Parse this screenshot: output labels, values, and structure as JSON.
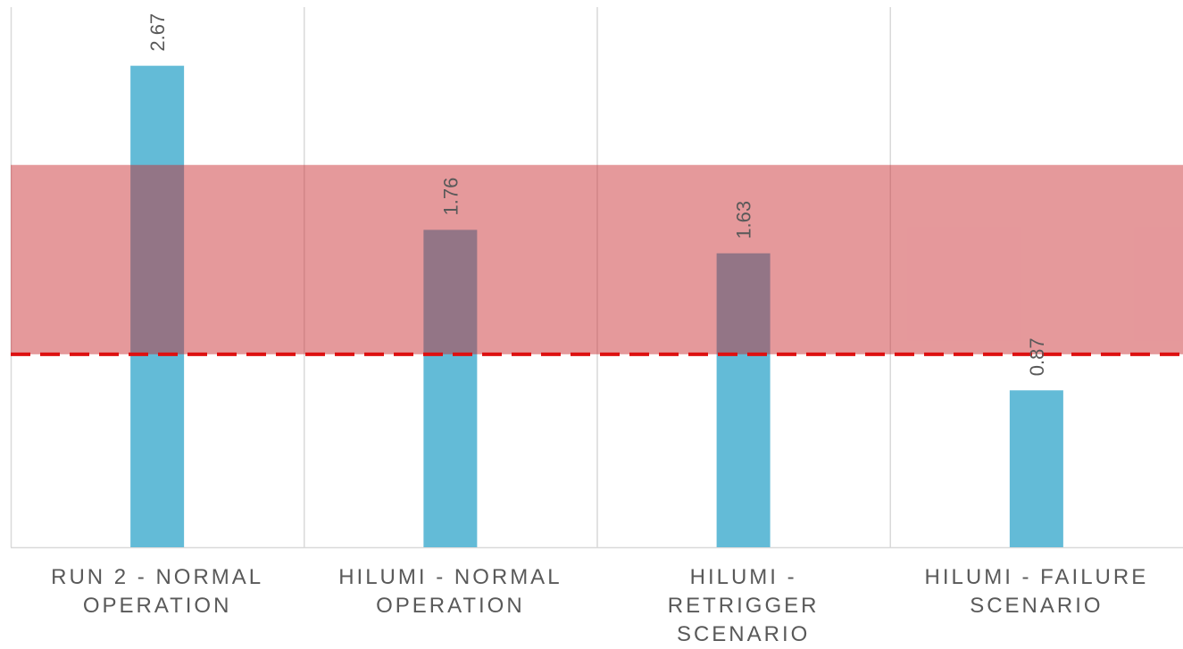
{
  "chart_data": {
    "type": "bar",
    "categories": [
      "RUN 2 - NORMAL OPERATION",
      "HILUMI - NORMAL OPERATION",
      "HILUMI - RETRIGGER SCENARIO",
      "HILUMI - FAILURE SCENARIO"
    ],
    "category_label_lines": [
      [
        "RUN 2 - NORMAL",
        "OPERATION"
      ],
      [
        "HILUMI - NORMAL",
        "OPERATION"
      ],
      [
        "HILUMI -",
        "RETRIGGER",
        "SCENARIO"
      ],
      [
        "HILUMI - FAILURE",
        "SCENARIO"
      ]
    ],
    "values": [
      2.67,
      1.76,
      1.63,
      0.87
    ],
    "data_labels": [
      "2.67",
      "1.76",
      "1.63",
      "0.87"
    ],
    "ylim": [
      0,
      3
    ],
    "bar_color": "#63BBD7",
    "threshold_line": {
      "value": 1.07,
      "color": "#DD1111",
      "style": "dashed"
    },
    "shaded_band": {
      "from": 1.07,
      "to": 2.12,
      "color": "#C8292E",
      "opacity": 0.48
    },
    "grid": {
      "vertical_separators": true,
      "horizontal": false
    },
    "legend": "none",
    "title": "",
    "xlabel": "",
    "ylabel": ""
  }
}
